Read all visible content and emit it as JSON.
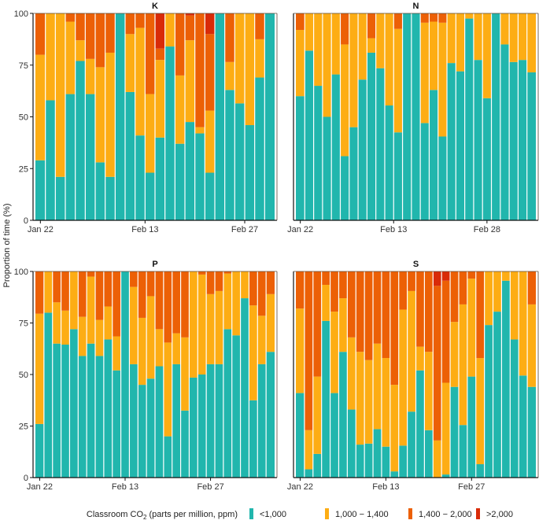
{
  "chart_data": {
    "type": "bar",
    "stacked": true,
    "ylabel": "Proportion of time (%)",
    "ylim": [
      0,
      100
    ],
    "yticks": [
      0,
      25,
      50,
      75,
      100
    ],
    "legend": {
      "title_prefix": "Classroom CO",
      "title_sub": "2",
      "title_suffix": " (parts per million, ppm)",
      "position": "bottom",
      "entries": [
        {
          "label": "<1,000",
          "color": "#21b6ad"
        },
        {
          "label": "1,000 − 1,400",
          "color": "#fdad14"
        },
        {
          "label": "1,400 − 2,000",
          "color": "#ec6006"
        },
        {
          "label": ">2,000",
          "color": "#d92b08"
        }
      ]
    },
    "panels": [
      {
        "title": "K",
        "xticks": [
          {
            "label": "Jan 22",
            "index": 0
          },
          {
            "label": "Feb 13",
            "index": 10.5
          },
          {
            "label": "Feb 27",
            "index": 20.5
          }
        ],
        "cumulative": [
          [
            29,
            80,
            100,
            100
          ],
          [
            58,
            100,
            100,
            100
          ],
          [
            21,
            100,
            100,
            100
          ],
          [
            61,
            96,
            100,
            100
          ],
          [
            77,
            87,
            100,
            100
          ],
          [
            61,
            78,
            100,
            100
          ],
          [
            28,
            74,
            100,
            100
          ],
          [
            21,
            81,
            100,
            100
          ],
          [
            100,
            100,
            100,
            100
          ],
          [
            62,
            90,
            100,
            100
          ],
          [
            41,
            93,
            100,
            100
          ],
          [
            23,
            61,
            100,
            100
          ],
          [
            40,
            77.5,
            83,
            100
          ],
          [
            84,
            100,
            100,
            100
          ],
          [
            37,
            70,
            100,
            100
          ],
          [
            47.5,
            87,
            99,
            100
          ],
          [
            42,
            45,
            100,
            100
          ],
          [
            23,
            53,
            90,
            100
          ],
          [
            100,
            100,
            100,
            100
          ],
          [
            63,
            76.5,
            100,
            100
          ],
          [
            56.5,
            100,
            100,
            100
          ],
          [
            46,
            100,
            100,
            100
          ],
          [
            69,
            87.5,
            100,
            100
          ],
          [
            100,
            100,
            100,
            100
          ]
        ]
      },
      {
        "title": "N",
        "xticks": [
          {
            "label": "Jan 22",
            "index": 0
          },
          {
            "label": "Feb 13",
            "index": 10.5
          },
          {
            "label": "Feb 28",
            "index": 21
          }
        ],
        "cumulative": [
          [
            60,
            92,
            100,
            100
          ],
          [
            82,
            100,
            100,
            100
          ],
          [
            65,
            100,
            100,
            100
          ],
          [
            50,
            100,
            100,
            100
          ],
          [
            70.5,
            100,
            100,
            100
          ],
          [
            31,
            85,
            100,
            100
          ],
          [
            45,
            100,
            100,
            100
          ],
          [
            68,
            100,
            100,
            100
          ],
          [
            81,
            88,
            100,
            100
          ],
          [
            73.5,
            100,
            100,
            100
          ],
          [
            55.5,
            100,
            100,
            100
          ],
          [
            42.5,
            92.5,
            100,
            100
          ],
          [
            100,
            100,
            100,
            100
          ],
          [
            100,
            100,
            100,
            100
          ],
          [
            47,
            95.5,
            100,
            100
          ],
          [
            63,
            96,
            100,
            100
          ],
          [
            40.5,
            95.5,
            100,
            100
          ],
          [
            76,
            100,
            100,
            100
          ],
          [
            72,
            100,
            100,
            100
          ],
          [
            97.5,
            100,
            100,
            100
          ],
          [
            77.5,
            100,
            100,
            100
          ],
          [
            59,
            100,
            100,
            100
          ],
          [
            100,
            100,
            100,
            100
          ],
          [
            85,
            100,
            100,
            100
          ],
          [
            76.5,
            100,
            100,
            100
          ],
          [
            77.5,
            100,
            100,
            100
          ],
          [
            71.5,
            100,
            100,
            100
          ]
        ]
      },
      {
        "title": "P",
        "xticks": [
          {
            "label": "Jan 22",
            "index": 0
          },
          {
            "label": "Feb 13",
            "index": 10
          },
          {
            "label": "Feb 27",
            "index": 20
          }
        ],
        "cumulative": [
          [
            26,
            79.5,
            100,
            100
          ],
          [
            80,
            100,
            100,
            100
          ],
          [
            65,
            85,
            100,
            100
          ],
          [
            64.5,
            81,
            100,
            100
          ],
          [
            72,
            100,
            100,
            100
          ],
          [
            59,
            78,
            100,
            100
          ],
          [
            65,
            97.5,
            100,
            100
          ],
          [
            59,
            76.5,
            100,
            100
          ],
          [
            67,
            83,
            100,
            100
          ],
          [
            52,
            68.5,
            100,
            100
          ],
          [
            100,
            100,
            100,
            100
          ],
          [
            55,
            92.5,
            100,
            100
          ],
          [
            45,
            77.5,
            100,
            100
          ],
          [
            48,
            88,
            100,
            100
          ],
          [
            54,
            72,
            100,
            100
          ],
          [
            20,
            65.5,
            100,
            100
          ],
          [
            55,
            70,
            100,
            100
          ],
          [
            32.5,
            68,
            100,
            100
          ],
          [
            48.5,
            100,
            100,
            100
          ],
          [
            50,
            98.5,
            100,
            100
          ],
          [
            55,
            89,
            100,
            100
          ],
          [
            55,
            90.5,
            100,
            100
          ],
          [
            72,
            99,
            100,
            100
          ],
          [
            69,
            100,
            100,
            100
          ],
          [
            87,
            100,
            100,
            100
          ],
          [
            37.5,
            83.5,
            100,
            100
          ],
          [
            55,
            78.5,
            100,
            100
          ],
          [
            61,
            89,
            100,
            100
          ]
        ]
      },
      {
        "title": "S",
        "xticks": [
          {
            "label": "Jan 22",
            "index": 0
          },
          {
            "label": "Feb 13",
            "index": 10
          },
          {
            "label": "Feb 27",
            "index": 20
          }
        ],
        "cumulative": [
          [
            41,
            82,
            100,
            100
          ],
          [
            4,
            23,
            100,
            100
          ],
          [
            11.5,
            49,
            100,
            100
          ],
          [
            76,
            93.5,
            100,
            100
          ],
          [
            41,
            80.5,
            100,
            100
          ],
          [
            61,
            87,
            100,
            100
          ],
          [
            33,
            68,
            100,
            100
          ],
          [
            16,
            61,
            100,
            100
          ],
          [
            16.5,
            57,
            100,
            100
          ],
          [
            23.5,
            65,
            100,
            100
          ],
          [
            15,
            58,
            100,
            100
          ],
          [
            3,
            45,
            100,
            100
          ],
          [
            15.5,
            81.5,
            100,
            100
          ],
          [
            32,
            90.5,
            100,
            100
          ],
          [
            52,
            63.5,
            100,
            100
          ],
          [
            23,
            61,
            100,
            100
          ],
          [
            0,
            18,
            93,
            100
          ],
          [
            1.5,
            46,
            95.5,
            100
          ],
          [
            44,
            75.5,
            100,
            100
          ],
          [
            25.5,
            84,
            100,
            100
          ],
          [
            49,
            96.5,
            100,
            100
          ],
          [
            6.5,
            58,
            100,
            100
          ],
          [
            74,
            100,
            100,
            100
          ],
          [
            80.5,
            100,
            100,
            100
          ],
          [
            95.5,
            100,
            100,
            100
          ],
          [
            67,
            100,
            100,
            100
          ],
          [
            49.5,
            100,
            100,
            100
          ],
          [
            44,
            84,
            100,
            100
          ]
        ]
      }
    ]
  }
}
